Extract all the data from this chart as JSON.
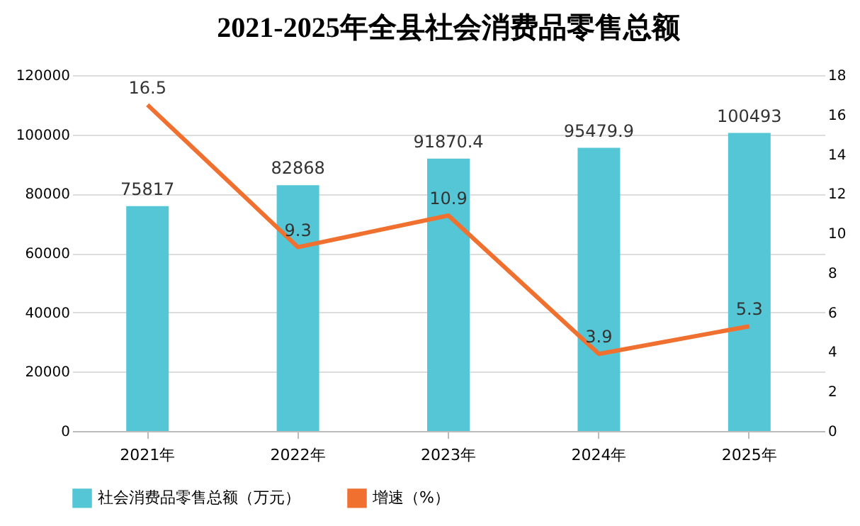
{
  "chart_data": {
    "type": "bar",
    "title": "2021-2025年全县社会消费品零售总额",
    "categories": [
      "2021年",
      "2022年",
      "2023年",
      "2024年",
      "2025年"
    ],
    "series": [
      {
        "name": "社会消费品零售总额（万元）",
        "color": "#55c6d6",
        "values": [
          75817,
          82868,
          91870.4,
          95479.9,
          100493
        ]
      },
      {
        "name": "增速（%）",
        "type": "line",
        "axis": "y2",
        "color": "#f07030",
        "values": [
          16.5,
          9.3,
          10.9,
          3.9,
          5.3
        ]
      }
    ],
    "ylim": [
      0,
      120000
    ],
    "yticks": [
      0,
      20000,
      40000,
      60000,
      80000,
      100000,
      120000
    ],
    "y2lim": [
      0,
      18
    ],
    "y2ticks": [
      0,
      2,
      4,
      6,
      8,
      10,
      12,
      14,
      16,
      18
    ],
    "grid": "y",
    "legend": "bottom",
    "data_labels": true
  }
}
